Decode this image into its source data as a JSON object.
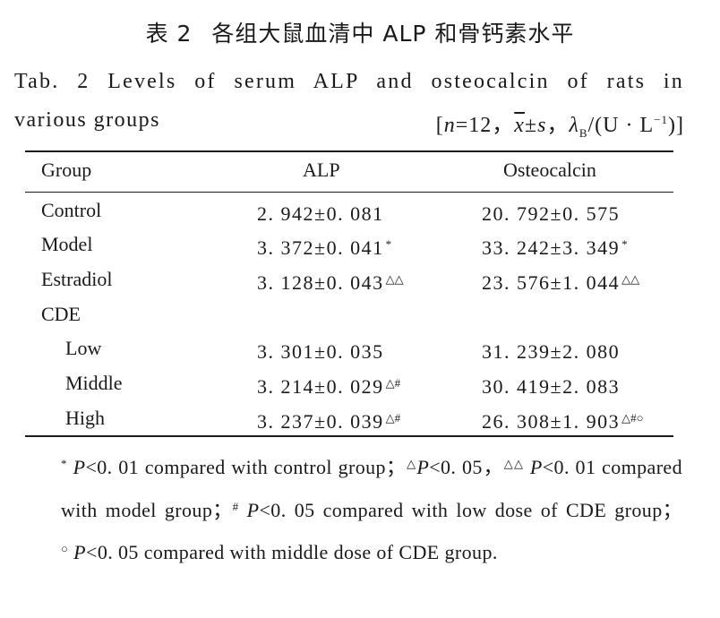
{
  "title_cn": {
    "number": "表 2",
    "text": "各组大鼠血清中 ALP 和骨钙素水平"
  },
  "title_en": {
    "line1": "Tab. 2   Levels of serum ALP and osteocalcin of rats in",
    "line2": "various groups"
  },
  "stats_note": {
    "open": "[",
    "n_var": "n",
    "n_eq": "=12，",
    "x_var": "x",
    "pm": "±",
    "s_var": "s",
    "comma": "，",
    "lambda": "λ",
    "lambda_sub": "B",
    "unit": "/(U · L",
    "unit_sup": "−1",
    "close": ")]"
  },
  "table": {
    "headers": {
      "group": "Group",
      "alp": "ALP",
      "osteocalcin": "Osteocalcin"
    },
    "rows": [
      {
        "group": "Control",
        "alp": "2. 942±0. 081",
        "alp_mark": "",
        "ost": "20. 792±0. 575",
        "ost_mark": ""
      },
      {
        "group": "Model",
        "alp": "3. 372±0. 041",
        "alp_mark": "*",
        "ost": "33. 242±3. 349",
        "ost_mark": "*"
      },
      {
        "group": "Estradiol",
        "alp": "3. 128±0. 043",
        "alp_mark": "△△",
        "ost": "23. 576±1. 044",
        "ost_mark": "△△"
      },
      {
        "group": "CDE",
        "alp": "",
        "alp_mark": "",
        "ost": "",
        "ost_mark": ""
      },
      {
        "group": "Low",
        "alp": "3. 301±0. 035",
        "alp_mark": "",
        "ost": "31. 239±2. 080",
        "ost_mark": ""
      },
      {
        "group": "Middle",
        "alp": "3. 214±0. 029",
        "alp_mark": "△#",
        "ost": "30. 419±2. 083",
        "ost_mark": ""
      },
      {
        "group": "High",
        "alp": "3. 237±0. 039",
        "alp_mark": "△#",
        "ost": "26. 308±1. 903",
        "ost_mark": "△#○"
      }
    ]
  },
  "footnote": {
    "m1": "*",
    "p1": "P",
    "t1": "<0. 01 compared with control group；",
    "m2": "△",
    "p2": "P",
    "t2": "<0. 05，",
    "m3": "△△",
    "p3": "P",
    "t3": "<0. 01 compared with model group；",
    "m4": "#",
    "p4": "P",
    "t4": "<0. 05 compared with low dose of CDE group；",
    "m5": "○",
    "p5": "P",
    "t5": "<0. 05 compared with middle dose of CDE group."
  }
}
